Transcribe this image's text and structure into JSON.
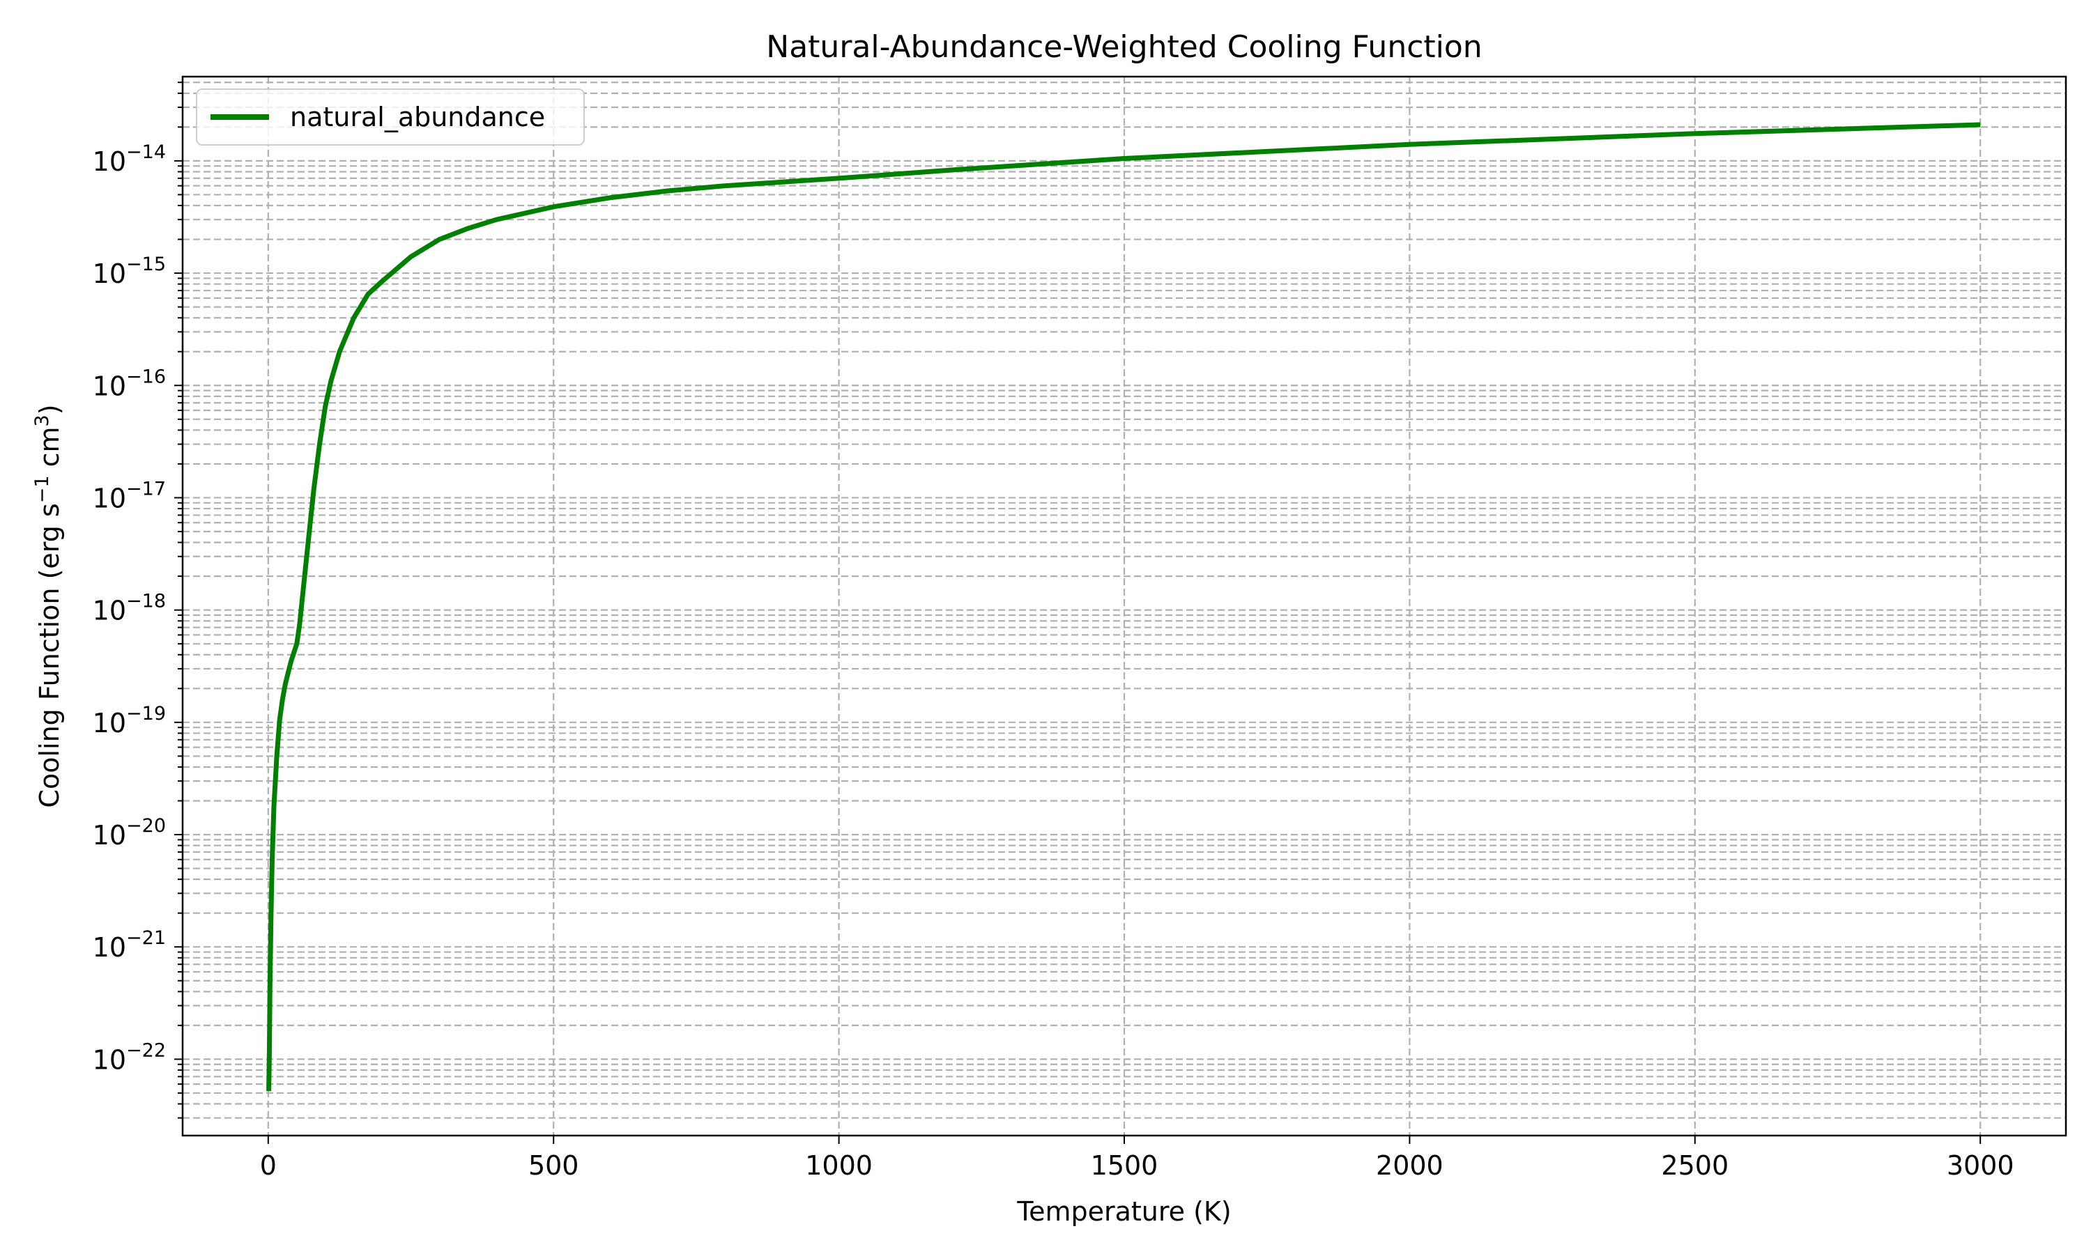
{
  "chart_data": {
    "type": "line",
    "title": "Natural-Abundance-Weighted Cooling Function",
    "xlabel": "Temperature (K)",
    "ylabel": {
      "prefix": "Cooling Function (erg s",
      "sup1": "−1",
      "middle": " cm",
      "sup2": "3",
      "suffix": ")"
    },
    "xscale": "linear",
    "yscale": "log",
    "xlim": [
      -150,
      3150
    ],
    "ylim_exp": [
      -22.68,
      -13.25
    ],
    "xticks": [
      0,
      500,
      1000,
      1500,
      2000,
      2500,
      3000
    ],
    "xtick_labels": [
      "0",
      "500",
      "1000",
      "1500",
      "2000",
      "2500",
      "3000"
    ],
    "yticks_exp": [
      -22,
      -21,
      -20,
      -19,
      -18,
      -17,
      -16,
      -15,
      -14
    ],
    "ytick_labels": [
      {
        "base": "10",
        "exp": "−22"
      },
      {
        "base": "10",
        "exp": "−21"
      },
      {
        "base": "10",
        "exp": "−20"
      },
      {
        "base": "10",
        "exp": "−19"
      },
      {
        "base": "10",
        "exp": "−18"
      },
      {
        "base": "10",
        "exp": "−17"
      },
      {
        "base": "10",
        "exp": "−16"
      },
      {
        "base": "10",
        "exp": "−15"
      },
      {
        "base": "10",
        "exp": "−14"
      }
    ],
    "grid": {
      "major": true,
      "minor_y": true,
      "style": "dashed"
    },
    "legend": {
      "placement": "upper-left"
    },
    "series": [
      {
        "name": "natural_abundance",
        "color": "#008000",
        "x": [
          1,
          2,
          3,
          5,
          7,
          10,
          15,
          20,
          25,
          30,
          40,
          50,
          55,
          60,
          70,
          80,
          90,
          100,
          110,
          125,
          150,
          175,
          200,
          250,
          300,
          350,
          400,
          500,
          600,
          700,
          800,
          1000,
          1200,
          1500,
          2000,
          2500,
          3000
        ],
        "y": [
          5.2e-23,
          1.2e-22,
          4.5e-22,
          2e-21,
          6e-21,
          1.8e-20,
          5e-20,
          1.05e-19,
          1.6e-19,
          2.2e-19,
          3.5e-19,
          5e-19,
          7.5e-19,
          1.3e-18,
          4e-18,
          1.2e-17,
          3e-17,
          6.5e-17,
          1.1e-16,
          2e-16,
          4e-16,
          6.5e-16,
          8.5e-16,
          1.4e-15,
          2e-15,
          2.5e-15,
          3e-15,
          3.9e-15,
          4.7e-15,
          5.4e-15,
          6e-15,
          7e-15,
          8.3e-15,
          1.05e-14,
          1.4e-14,
          1.75e-14,
          2.1e-14
        ]
      }
    ]
  }
}
